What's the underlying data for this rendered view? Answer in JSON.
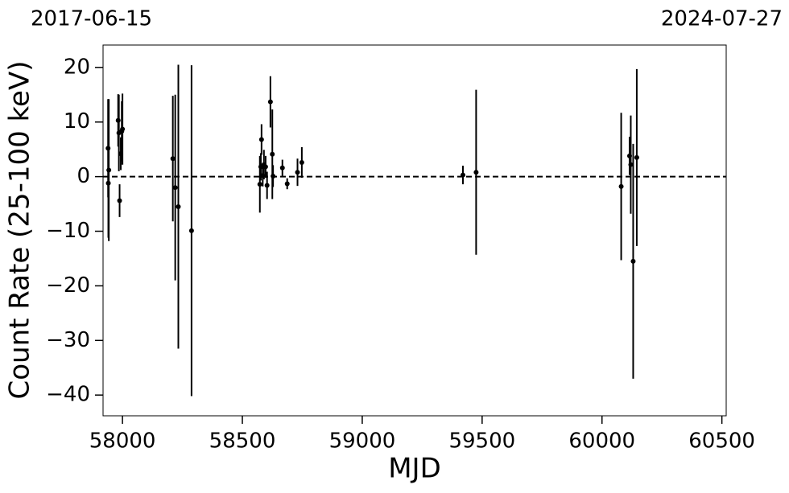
{
  "chart_data": {
    "type": "errorbar",
    "corner_labels": [
      "2017-06-15",
      "2024-07-27"
    ],
    "xlabel": "MJD",
    "ylabel": "Count Rate (25-100 keV)",
    "xlim": [
      57919,
      60518
    ],
    "ylim": [
      -43.8,
      24.1
    ],
    "xticks": [
      58000,
      58500,
      59000,
      59500,
      60000,
      60500
    ],
    "yticks": [
      {
        "value": -40,
        "label": "−40"
      },
      {
        "value": -30,
        "label": "−30"
      },
      {
        "value": -20,
        "label": "−20"
      },
      {
        "value": -10,
        "label": "−10"
      },
      0,
      10,
      20
    ],
    "hline": 0,
    "grid": false,
    "color": "#000000",
    "series": [
      {
        "name": "Count Rate",
        "x": [
          57940,
          57943,
          57941,
          57982,
          57985,
          57988,
          57993,
          57997,
          58000,
          58210,
          58220,
          58233,
          58288,
          58573,
          58577,
          58580,
          58585,
          58590,
          58597,
          58603,
          58617,
          58625,
          58628,
          58667,
          58687,
          58730,
          58748,
          59420,
          59475,
          60080,
          60115,
          60120,
          60130,
          60145
        ],
        "values": [
          5.2,
          1.2,
          -1.2,
          10.3,
          8.0,
          -4.4,
          4.2,
          8.3,
          8.7,
          3.3,
          -2.0,
          -5.5,
          -9.9,
          -1.4,
          1.8,
          6.8,
          0.2,
          2.2,
          1.8,
          -1.6,
          13.7,
          4.1,
          0.1,
          1.6,
          -1.3,
          0.8,
          2.6,
          0.3,
          0.8,
          -1.8,
          3.8,
          2.2,
          -15.5,
          3.5
        ],
        "errors": [
          9,
          13,
          10,
          4.8,
          7,
          3,
          3,
          5.5,
          6.5,
          11.5,
          17,
          26,
          30.3,
          5.2,
          2.5,
          2.8,
          2,
          2.7,
          2,
          2.5,
          4.7,
          8.2,
          2,
          1.5,
          1,
          2.5,
          2.8,
          1.7,
          15.1,
          13.5,
          3.5,
          9,
          21.5,
          16.2
        ]
      }
    ]
  }
}
